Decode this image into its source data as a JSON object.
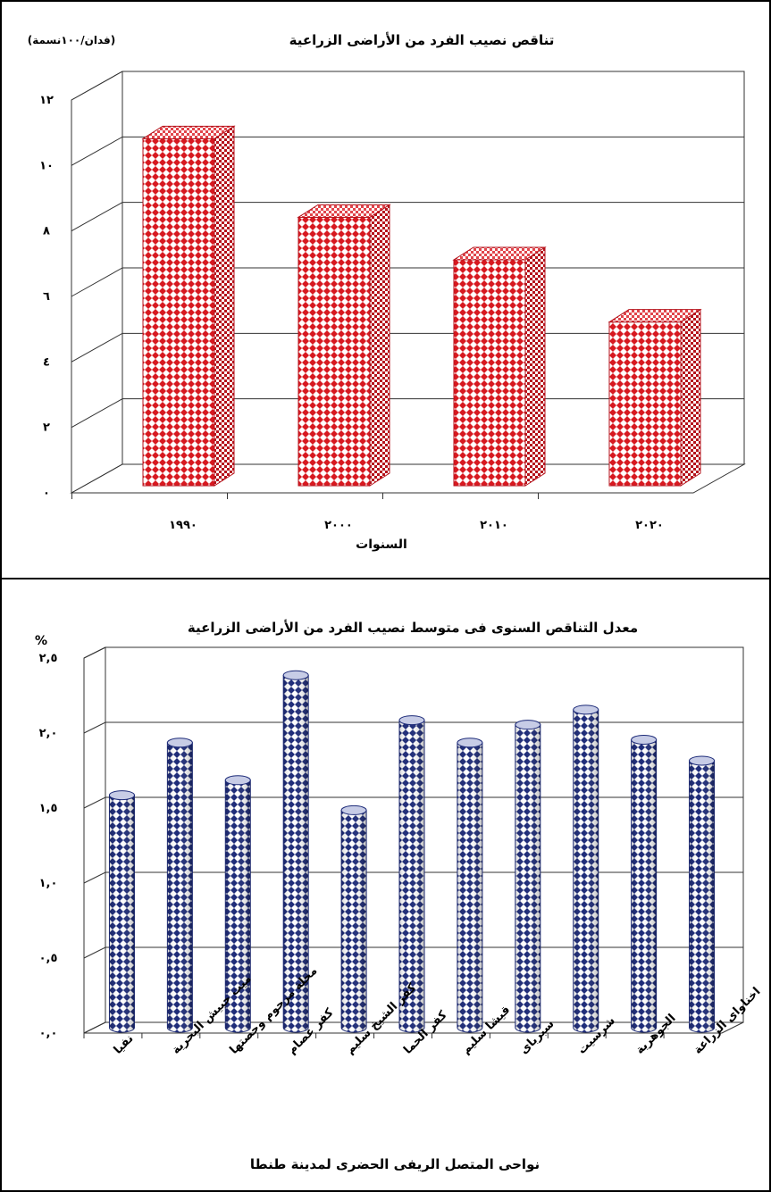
{
  "chart_data": [
    {
      "type": "bar",
      "title": "تناقص نصيب الفرد من الأراضى الزراعية",
      "ylabel": "(فدان/١٠٠نسمة)",
      "xlabel": "السنوات",
      "categories": [
        "١٩٩٠",
        "٢٠٠٠",
        "٢٠١٠",
        "٢٠٢٠"
      ],
      "values": [
        10.6,
        8.2,
        6.9,
        5.0
      ],
      "ylim": [
        0,
        12
      ],
      "yticks": [
        0,
        2,
        4,
        6,
        8,
        10,
        12
      ],
      "ytick_labels": [
        "٠",
        "٢",
        "٤",
        "٦",
        "٨",
        "١٠",
        "١٢"
      ],
      "grid": true,
      "style": "3d-bar",
      "colors": {
        "bar": "#d71920",
        "pattern": "#ffffff",
        "grid": "#333333"
      }
    },
    {
      "type": "bar",
      "title": "معدل التناقص السنوى فى متوسط نصيب الفرد من الأراضى الزراعية",
      "ylabel": "%",
      "xlabel": "نواحى المتصل الريفى الحضرى لمدينة طنطا",
      "categories": [
        "نفيا",
        "ميت حبيش البحرية",
        "محلة مرحوم وحصتها",
        "كفر عصام",
        "كفر الشيخ سليم",
        "كفر الحما",
        "قيشا سليم",
        "سبرباى",
        "شرسيت",
        "الجوهرية",
        "اخناواى الزراعة"
      ],
      "values": [
        1.55,
        1.9,
        1.65,
        2.35,
        1.45,
        2.05,
        1.9,
        2.02,
        2.12,
        1.92,
        1.78
      ],
      "ylim": [
        0,
        2.5
      ],
      "yticks": [
        0,
        0.5,
        1.0,
        1.5,
        2.0,
        2.5
      ],
      "ytick_labels": [
        "٠,٠",
        "٠,٥",
        "١,٠",
        "١,٥",
        "٢,٠",
        "٢,٥"
      ],
      "grid": true,
      "style": "3d-cylinder",
      "colors": {
        "bar": "#1c2a78",
        "pattern": "#ffffff",
        "grid": "#333333"
      }
    }
  ]
}
